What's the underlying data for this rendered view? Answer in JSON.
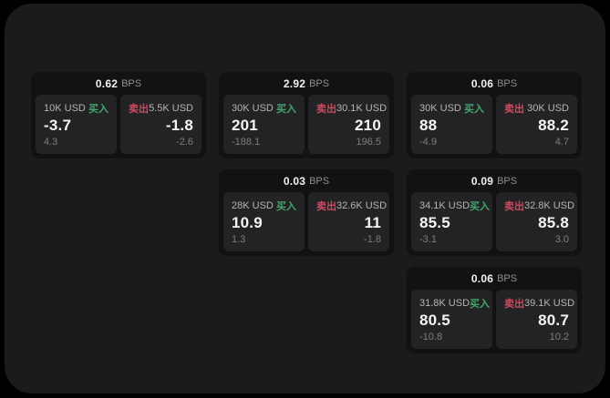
{
  "colors": {
    "outer_bg": "#000000",
    "panel_bg": "#1b1b1d",
    "card_bg": "#121212",
    "tile_bg": "#232325",
    "buy_green": "#43a56c",
    "sell_red": "#cd4a5f"
  },
  "cards": [
    {
      "bps_value": "0.62",
      "bps_unit": "BPS",
      "buy": {
        "size": "10K USD",
        "side": "买入",
        "price": "-3.7",
        "sub_value": "4.3"
      },
      "sell": {
        "side": "卖出",
        "size": "5.5K USD",
        "price": "-1.8",
        "sub_value": "-2.6"
      }
    },
    {
      "bps_value": "2.92",
      "bps_unit": "BPS",
      "buy": {
        "size": "30K USD",
        "side": "买入",
        "price": "201",
        "sub_value": "-188.1"
      },
      "sell": {
        "side": "卖出",
        "size": "30.1K USD",
        "price": "210",
        "sub_value": "196.5"
      }
    },
    {
      "bps_value": "0.06",
      "bps_unit": "BPS",
      "buy": {
        "size": "30K USD",
        "side": "买入",
        "price": "88",
        "sub_value": "-4.9"
      },
      "sell": {
        "side": "卖出",
        "size": "30K USD",
        "price": "88.2",
        "sub_value": "4.7"
      }
    },
    {
      "bps_value": "0.03",
      "bps_unit": "BPS",
      "buy": {
        "size": "28K USD",
        "side": "买入",
        "price": "10.9",
        "sub_value": "1.3"
      },
      "sell": {
        "side": "卖出",
        "size": "32.6K USD",
        "price": "11",
        "sub_value": "-1.8"
      }
    },
    {
      "bps_value": "0.09",
      "bps_unit": "BPS",
      "buy": {
        "size": "34.1K USD",
        "side": "买入",
        "price": "85.5",
        "sub_value": "-3.1"
      },
      "sell": {
        "side": "卖出",
        "size": "32.8K USD",
        "price": "85.8",
        "sub_value": "3.0"
      }
    },
    {
      "bps_value": "0.06",
      "bps_unit": "BPS",
      "buy": {
        "size": "31.8K USD",
        "side": "买入",
        "price": "80.5",
        "sub_value": "-10.8"
      },
      "sell": {
        "side": "卖出",
        "size": "39.1K USD",
        "price": "80.7",
        "sub_value": "10.2"
      }
    }
  ]
}
